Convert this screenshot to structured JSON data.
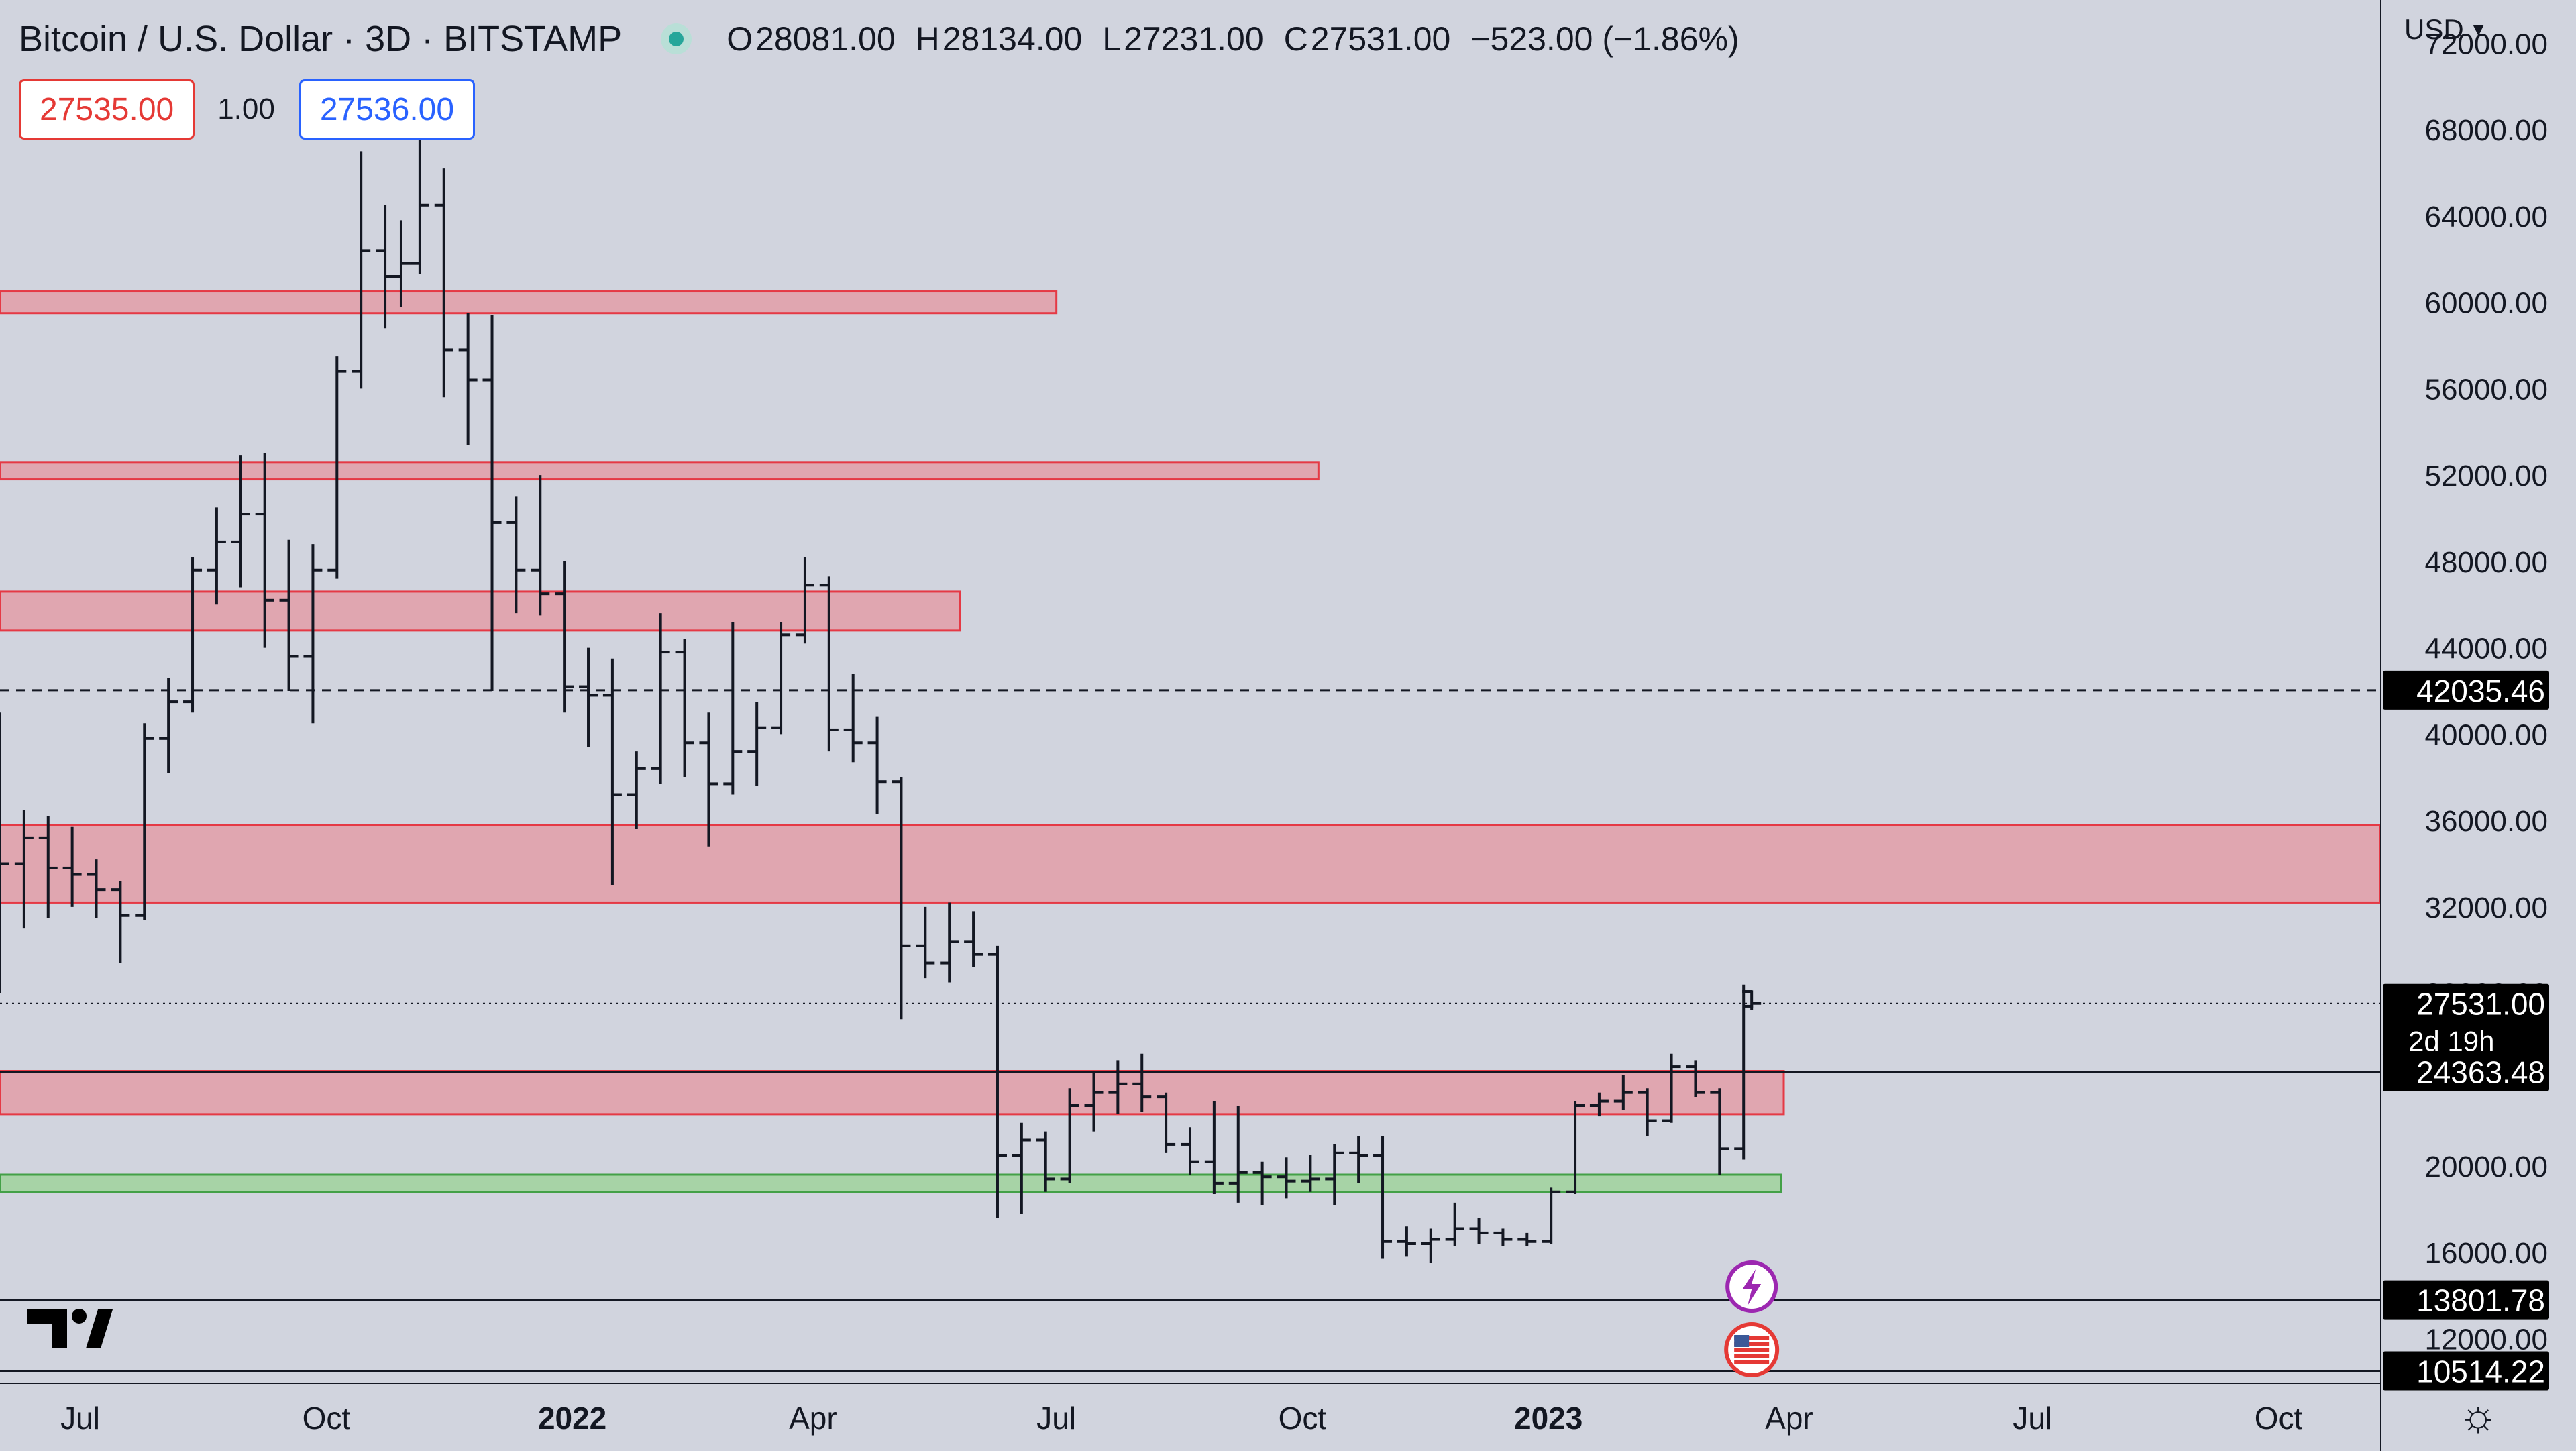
{
  "header": {
    "title": "Bitcoin / U.S. Dollar · 3D · BITSTAMP",
    "open_label": "O",
    "open": "28081.00",
    "high_label": "H",
    "high": "28134.00",
    "low_label": "L",
    "low": "27231.00",
    "close_label": "C",
    "close": "27531.00",
    "change": "−523.00 (−1.86%)"
  },
  "trade": {
    "sell_price": "27535.00",
    "quantity": "1.00",
    "buy_price": "27536.00"
  },
  "currency": "USD",
  "colors": {
    "background": "#d1d4de",
    "zone_fill": "#e0a6b0",
    "zone_border": "#e53945",
    "support_fill": "#a7d3a6",
    "support_border": "#43a047",
    "bar": "#131722",
    "label_bg": "#000000",
    "label_text": "#ffffff"
  },
  "chart_data": {
    "type": "ohlc",
    "x_start": "2021-06-01",
    "x_end": "2023-11-08",
    "ylim": [
      10000,
      74000
    ],
    "y_ticks": [
      "72000.00",
      "68000.00",
      "64000.00",
      "60000.00",
      "56000.00",
      "52000.00",
      "48000.00",
      "44000.00",
      "40000.00",
      "36000.00",
      "32000.00",
      "28000.00",
      "24000.00",
      "20000.00",
      "16000.00",
      "12000.00"
    ],
    "x_ticks": [
      {
        "date": "2021-07-01",
        "label": "Jul",
        "bold": false
      },
      {
        "date": "2021-10-01",
        "label": "Oct",
        "bold": false
      },
      {
        "date": "2022-01-01",
        "label": "2022",
        "bold": true
      },
      {
        "date": "2022-04-01",
        "label": "Apr",
        "bold": false
      },
      {
        "date": "2022-07-01",
        "label": "Jul",
        "bold": false
      },
      {
        "date": "2022-10-01",
        "label": "Oct",
        "bold": false
      },
      {
        "date": "2023-01-01",
        "label": "2023",
        "bold": true
      },
      {
        "date": "2023-04-01",
        "label": "Apr",
        "bold": false
      },
      {
        "date": "2023-07-01",
        "label": "Jul",
        "bold": false
      },
      {
        "date": "2023-10-01",
        "label": "Oct",
        "bold": false
      }
    ],
    "resistance_zones": [
      {
        "from": "2021-06-01",
        "to": "2022-07-01",
        "y_low": 59500,
        "y_high": 60500
      },
      {
        "from": "2021-06-01",
        "to": "2022-10-07",
        "y_low": 51800,
        "y_high": 52600
      },
      {
        "from": "2021-06-01",
        "to": "2022-05-26",
        "y_low": 44800,
        "y_high": 46600
      },
      {
        "from": "2021-06-01",
        "to": "2023-11-08",
        "y_low": 32200,
        "y_high": 35800
      },
      {
        "from": "2021-06-01",
        "to": "2023-03-30",
        "y_low": 22400,
        "y_high": 24400
      }
    ],
    "support_zones": [
      {
        "from": "2021-06-01",
        "to": "2023-03-29",
        "y_low": 18800,
        "y_high": 19600
      }
    ],
    "price_lines": [
      {
        "value": 42035.46,
        "label": "42035.46",
        "style": "dashed"
      },
      {
        "value": 27531.0,
        "label": "27531.00",
        "sublabel": "2d 19h",
        "style": "dotted"
      },
      {
        "value": 24363.48,
        "label": "24363.48",
        "style": "solid"
      },
      {
        "value": 13801.78,
        "label": "13801.78",
        "style": "solid"
      },
      {
        "value": 10514.22,
        "label": "10514.22",
        "style": "solid"
      }
    ],
    "ohlc": [
      [
        "2021-06-01",
        36000,
        41000,
        28000,
        34000
      ],
      [
        "2021-06-10",
        34000,
        36500,
        31000,
        35200
      ],
      [
        "2021-06-19",
        35200,
        36200,
        31500,
        33800
      ],
      [
        "2021-06-28",
        33800,
        35700,
        32000,
        33500
      ],
      [
        "2021-07-07",
        33500,
        34200,
        31500,
        32800
      ],
      [
        "2021-07-16",
        32800,
        33200,
        29400,
        31600
      ],
      [
        "2021-07-25",
        31600,
        40500,
        31400,
        39800
      ],
      [
        "2021-08-03",
        39800,
        42600,
        38200,
        41500
      ],
      [
        "2021-08-12",
        41500,
        48200,
        41000,
        47600
      ],
      [
        "2021-08-21",
        47600,
        50500,
        46000,
        48900
      ],
      [
        "2021-08-30",
        48900,
        52900,
        46800,
        50200
      ],
      [
        "2021-09-08",
        50200,
        53000,
        44000,
        46200
      ],
      [
        "2021-09-17",
        46200,
        49000,
        42000,
        43600
      ],
      [
        "2021-09-26",
        43600,
        48800,
        40500,
        47600
      ],
      [
        "2021-10-05",
        47600,
        57500,
        47200,
        56800
      ],
      [
        "2021-10-14",
        56800,
        67000,
        56000,
        62400
      ],
      [
        "2021-10-23",
        62400,
        64500,
        58800,
        61200
      ],
      [
        "2021-10-29",
        61200,
        63800,
        59800,
        61800
      ],
      [
        "2021-11-05",
        61800,
        68800,
        61300,
        64500
      ],
      [
        "2021-11-14",
        64500,
        66200,
        55600,
        57800
      ],
      [
        "2021-11-23",
        57800,
        59500,
        53400,
        56400
      ],
      [
        "2021-12-02",
        56400,
        59400,
        42000,
        49800
      ],
      [
        "2021-12-11",
        49800,
        51000,
        45600,
        47600
      ],
      [
        "2021-12-20",
        47600,
        52000,
        45500,
        46500
      ],
      [
        "2021-12-29",
        46500,
        48000,
        41000,
        42200
      ],
      [
        "2022-01-07",
        42200,
        44000,
        39400,
        41800
      ],
      [
        "2022-01-16",
        41800,
        43500,
        33000,
        37200
      ],
      [
        "2022-01-25",
        37200,
        39200,
        35600,
        38400
      ],
      [
        "2022-02-03",
        38400,
        45600,
        37700,
        43800
      ],
      [
        "2022-02-12",
        43800,
        44400,
        38000,
        39600
      ],
      [
        "2022-02-21",
        39600,
        41000,
        34800,
        37700
      ],
      [
        "2022-03-02",
        37700,
        45200,
        37200,
        39200
      ],
      [
        "2022-03-11",
        39200,
        41500,
        37600,
        40300
      ],
      [
        "2022-03-20",
        40300,
        45200,
        40000,
        44600
      ],
      [
        "2022-03-29",
        44600,
        48200,
        44200,
        46900
      ],
      [
        "2022-04-07",
        46900,
        47300,
        39200,
        40200
      ],
      [
        "2022-04-16",
        40200,
        42800,
        38700,
        39600
      ],
      [
        "2022-04-25",
        39600,
        40800,
        36300,
        37800
      ],
      [
        "2022-05-04",
        37800,
        38000,
        26800,
        30200
      ],
      [
        "2022-05-13",
        30200,
        32000,
        28700,
        29400
      ],
      [
        "2022-05-22",
        29400,
        32200,
        28500,
        30400
      ],
      [
        "2022-05-31",
        30400,
        31800,
        29200,
        29800
      ],
      [
        "2022-06-09",
        29800,
        30200,
        17600,
        20500
      ],
      [
        "2022-06-18",
        20500,
        22000,
        17800,
        21200
      ],
      [
        "2022-06-27",
        21200,
        21600,
        18800,
        19400
      ],
      [
        "2022-07-06",
        19400,
        23600,
        19200,
        22800
      ],
      [
        "2022-07-15",
        22800,
        24300,
        21600,
        23400
      ],
      [
        "2022-07-24",
        23400,
        24900,
        22400,
        23800
      ],
      [
        "2022-08-02",
        23800,
        25200,
        22500,
        23200
      ],
      [
        "2022-08-11",
        23200,
        23400,
        20600,
        21000
      ],
      [
        "2022-08-20",
        21000,
        21800,
        19600,
        20200
      ],
      [
        "2022-08-29",
        20200,
        23000,
        18700,
        19200
      ],
      [
        "2022-09-07",
        19200,
        22800,
        18300,
        19700
      ],
      [
        "2022-09-16",
        19700,
        20200,
        18200,
        19500
      ],
      [
        "2022-09-25",
        19500,
        20400,
        18500,
        19300
      ],
      [
        "2022-10-04",
        19300,
        20500,
        18800,
        19400
      ],
      [
        "2022-10-13",
        19400,
        21000,
        18200,
        20600
      ],
      [
        "2022-10-22",
        20600,
        21400,
        19200,
        20500
      ],
      [
        "2022-10-31",
        20500,
        21400,
        15700,
        16500
      ],
      [
        "2022-11-09",
        16500,
        17200,
        15800,
        16400
      ],
      [
        "2022-11-18",
        16400,
        17100,
        15500,
        16600
      ],
      [
        "2022-11-27",
        16600,
        18300,
        16300,
        17100
      ],
      [
        "2022-12-06",
        17100,
        17600,
        16400,
        16900
      ],
      [
        "2022-12-15",
        16900,
        17100,
        16300,
        16600
      ],
      [
        "2022-12-24",
        16600,
        16900,
        16300,
        16500
      ],
      [
        "2023-01-02",
        16500,
        19000,
        16400,
        18800
      ],
      [
        "2023-01-11",
        18800,
        23000,
        18700,
        22800
      ],
      [
        "2023-01-20",
        22800,
        23400,
        22300,
        23000
      ],
      [
        "2023-01-29",
        23000,
        24200,
        22600,
        23400
      ],
      [
        "2023-02-07",
        23400,
        23600,
        21400,
        22100
      ],
      [
        "2023-02-16",
        22100,
        25200,
        22000,
        24600
      ],
      [
        "2023-02-25",
        24600,
        24900,
        23200,
        23400
      ],
      [
        "2023-03-06",
        23400,
        23600,
        19600,
        20800
      ],
      [
        "2023-03-15",
        20800,
        28400,
        20300,
        27400
      ],
      [
        "2023-03-18",
        28081,
        28134,
        27231,
        27531
      ]
    ]
  }
}
